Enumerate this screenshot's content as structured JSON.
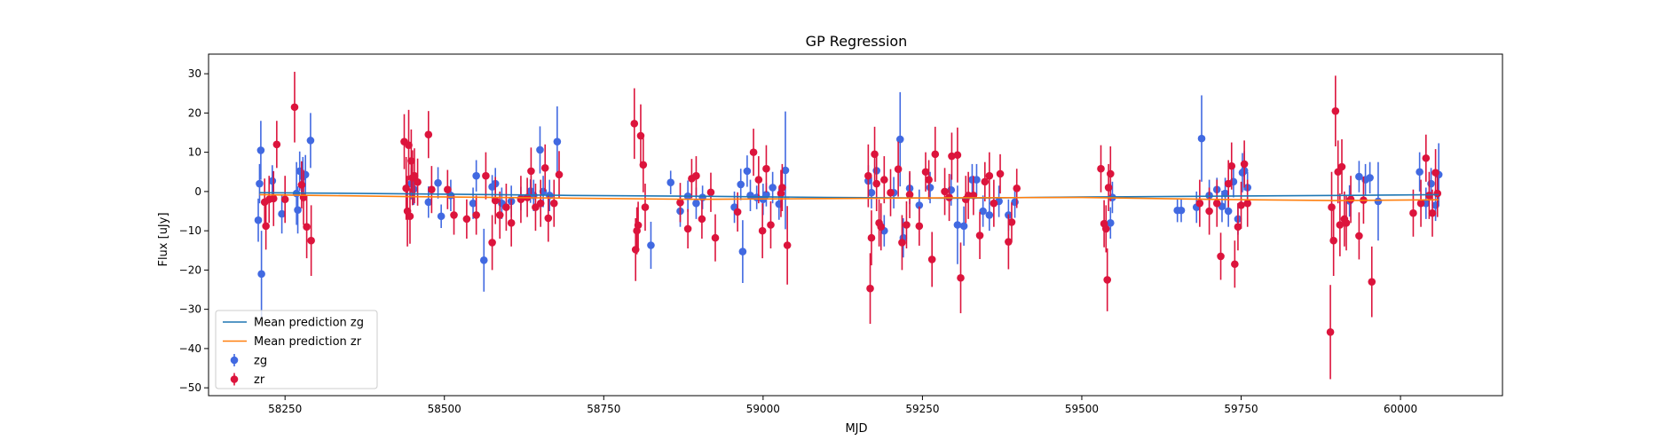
{
  "chart_data": {
    "type": "scatter",
    "title": "GP Regression",
    "xlabel": "MJD",
    "ylabel": "Flux [uJy]",
    "xlim": [
      58130,
      60160
    ],
    "ylim": [
      -52,
      35
    ],
    "x_ticks": [
      58250,
      58500,
      58750,
      59000,
      59250,
      59500,
      59750,
      60000
    ],
    "y_ticks": [
      -50,
      -40,
      -30,
      -20,
      -10,
      0,
      10,
      20,
      30
    ],
    "grid": false,
    "legend_position": "lower-left",
    "legend": [
      "Mean prediction zg",
      "Mean prediction zr",
      "zg",
      "zr"
    ],
    "colors": {
      "zg_line": "#1f77b4",
      "zr_line": "#ff7f0e",
      "zg_points": "#4169e1",
      "zr_points": "#dc143c"
    },
    "lines": [
      {
        "name": "Mean prediction zg",
        "x": [
          58210,
          58300,
          58450,
          58700,
          58900,
          59100,
          59300,
          59500,
          59700,
          59900,
          60060
        ],
        "y": [
          -0.3,
          -0.4,
          -0.6,
          -1.0,
          -1.2,
          -1.5,
          -1.7,
          -1.4,
          -1.2,
          -1.0,
          -0.8
        ]
      },
      {
        "name": "Mean prediction zr",
        "x": [
          58210,
          58300,
          58450,
          58700,
          58900,
          59100,
          59300,
          59500,
          59700,
          59900,
          60060
        ],
        "y": [
          -0.8,
          -1.0,
          -1.3,
          -1.7,
          -2.0,
          -1.8,
          -1.6,
          -1.5,
          -2.0,
          -2.3,
          -2.1
        ]
      }
    ],
    "series": [
      {
        "name": "zg",
        "points": [
          [
            58208,
            -7.3,
            5.5
          ],
          [
            58210,
            2.0,
            5
          ],
          [
            58212,
            10.5,
            7.5
          ],
          [
            58213,
            -21.0,
            11
          ],
          [
            58230,
            2.7,
            4
          ],
          [
            58245,
            -5.7,
            5
          ],
          [
            58268,
            -0.5,
            8
          ],
          [
            58270,
            -4.7,
            6
          ],
          [
            58273,
            5.2,
            5
          ],
          [
            58278,
            3.8,
            5
          ],
          [
            58282,
            4.3,
            5
          ],
          [
            58290,
            13.0,
            7
          ],
          [
            58448,
            2.0,
            4
          ],
          [
            58452,
            0.6,
            4
          ],
          [
            58475,
            -2.7,
            4
          ],
          [
            58490,
            2.2,
            4
          ],
          [
            58495,
            -6.3,
            3
          ],
          [
            58510,
            -1.0,
            4
          ],
          [
            58545,
            -3.0,
            4
          ],
          [
            58550,
            4.0,
            4
          ],
          [
            58562,
            -17.5,
            8
          ],
          [
            58575,
            1.2,
            3
          ],
          [
            58580,
            2.0,
            4
          ],
          [
            58590,
            -3.0,
            4
          ],
          [
            58605,
            -2.5,
            4
          ],
          [
            58620,
            -1.8,
            3
          ],
          [
            58635,
            0.1,
            3
          ],
          [
            58640,
            -1.0,
            4
          ],
          [
            58650,
            10.6,
            6
          ],
          [
            58655,
            0.0,
            4
          ],
          [
            58665,
            -1.0,
            4
          ],
          [
            58677,
            12.7,
            9
          ],
          [
            58824,
            -13.7,
            6
          ],
          [
            58855,
            2.3,
            3
          ],
          [
            58870,
            -5.0,
            4
          ],
          [
            58882,
            -1.2,
            4
          ],
          [
            58895,
            -3.0,
            4
          ],
          [
            58905,
            -1.5,
            3
          ],
          [
            58955,
            -4.0,
            4
          ],
          [
            58965,
            1.8,
            4
          ],
          [
            58968,
            -15.3,
            8
          ],
          [
            58975,
            5.2,
            4
          ],
          [
            58980,
            -1.0,
            4
          ],
          [
            58990,
            -1.5,
            3
          ],
          [
            59000,
            -2.0,
            4
          ],
          [
            59005,
            -0.8,
            3
          ],
          [
            59015,
            1.0,
            4
          ],
          [
            59025,
            -3.2,
            4
          ],
          [
            59035,
            5.4,
            15
          ],
          [
            59165,
            2.7,
            4
          ],
          [
            59170,
            -0.3,
            4
          ],
          [
            59178,
            5.3,
            4
          ],
          [
            59190,
            -10.0,
            4
          ],
          [
            59205,
            -0.3,
            4
          ],
          [
            59215,
            13.3,
            12
          ],
          [
            59220,
            -11.8,
            5
          ],
          [
            59230,
            0.8,
            4
          ],
          [
            59245,
            -3.5,
            4
          ],
          [
            59262,
            1.0,
            4
          ],
          [
            59295,
            0.4,
            4
          ],
          [
            59305,
            -8.5,
            10
          ],
          [
            59315,
            -8.8,
            5
          ],
          [
            59328,
            3.0,
            4
          ],
          [
            59335,
            3.0,
            4
          ],
          [
            59345,
            -5.0,
            4
          ],
          [
            59355,
            -6.0,
            4
          ],
          [
            59370,
            -2.5,
            4
          ],
          [
            59385,
            -6.0,
            4
          ],
          [
            59395,
            -2.7,
            4
          ],
          [
            59545,
            -8.0,
            4
          ],
          [
            59548,
            -1.5,
            4
          ],
          [
            59650,
            -4.8,
            3
          ],
          [
            59656,
            -4.8,
            3
          ],
          [
            59680,
            -4.0,
            4
          ],
          [
            59688,
            13.5,
            11
          ],
          [
            59700,
            -1.0,
            4
          ],
          [
            59712,
            0.5,
            3
          ],
          [
            59720,
            -3.8,
            4
          ],
          [
            59725,
            -0.5,
            4
          ],
          [
            59730,
            -5.0,
            4
          ],
          [
            59738,
            2.5,
            4
          ],
          [
            59745,
            -7.0,
            4
          ],
          [
            59752,
            4.8,
            5
          ],
          [
            59755,
            5.3,
            5
          ],
          [
            59760,
            1.0,
            4
          ],
          [
            59920,
            -2.4,
            4
          ],
          [
            59935,
            3.8,
            4
          ],
          [
            59945,
            3.0,
            4
          ],
          [
            59952,
            3.5,
            4
          ],
          [
            59965,
            -2.5,
            10
          ],
          [
            60030,
            5.0,
            5
          ],
          [
            60040,
            -3.0,
            4
          ],
          [
            60048,
            2.0,
            4
          ],
          [
            60055,
            -3.5,
            4
          ],
          [
            60060,
            4.3,
            8
          ]
        ]
      },
      {
        "name": "zr",
        "points": [
          [
            58218,
            -2.7,
            6
          ],
          [
            58220,
            -8.8,
            6
          ],
          [
            58225,
            -2.0,
            6
          ],
          [
            58232,
            -1.8,
            7
          ],
          [
            58237,
            12.0,
            6
          ],
          [
            58250,
            -2.0,
            6
          ],
          [
            58265,
            21.5,
            9
          ],
          [
            58276,
            1.7,
            6
          ],
          [
            58279,
            -1.5,
            7
          ],
          [
            58284,
            -9.0,
            8
          ],
          [
            58291,
            -12.5,
            9
          ],
          [
            58437,
            12.7,
            7
          ],
          [
            58440,
            0.8,
            8
          ],
          [
            58442,
            -5.0,
            9
          ],
          [
            58444,
            11.8,
            9
          ],
          [
            58446,
            -6.3,
            7
          ],
          [
            58448,
            7.8,
            8
          ],
          [
            58450,
            3.5,
            7
          ],
          [
            58453,
            4.0,
            7
          ],
          [
            58458,
            2.4,
            6
          ],
          [
            58475,
            14.5,
            6
          ],
          [
            58480,
            0.5,
            6
          ],
          [
            58505,
            0.5,
            5
          ],
          [
            58515,
            -6.0,
            5
          ],
          [
            58535,
            -7.0,
            5
          ],
          [
            58550,
            -6.0,
            5
          ],
          [
            58565,
            4.0,
            6
          ],
          [
            58575,
            -13.0,
            7
          ],
          [
            58580,
            -2.3,
            6
          ],
          [
            58587,
            -6.0,
            6
          ],
          [
            58597,
            -4.0,
            6
          ],
          [
            58605,
            -8.0,
            6
          ],
          [
            58620,
            -2.0,
            6
          ],
          [
            58630,
            -1.5,
            5
          ],
          [
            58636,
            5.2,
            6
          ],
          [
            58643,
            -4.0,
            6
          ],
          [
            58651,
            -3.0,
            6
          ],
          [
            58658,
            6.0,
            6
          ],
          [
            58663,
            -6.8,
            6
          ],
          [
            58672,
            -3.0,
            6
          ],
          [
            58680,
            4.3,
            6
          ],
          [
            58798,
            17.3,
            9
          ],
          [
            58800,
            -14.8,
            8
          ],
          [
            58802,
            -10.0,
            6
          ],
          [
            58804,
            -8.6,
            6
          ],
          [
            58808,
            14.2,
            8
          ],
          [
            58812,
            6.8,
            7
          ],
          [
            58815,
            -4.0,
            6
          ],
          [
            58870,
            -2.8,
            5
          ],
          [
            58882,
            -9.5,
            5
          ],
          [
            58888,
            3.3,
            5
          ],
          [
            58895,
            4.0,
            5
          ],
          [
            58904,
            -7.0,
            5
          ],
          [
            58918,
            -0.2,
            5
          ],
          [
            58925,
            -11.8,
            6
          ],
          [
            58960,
            -5.2,
            5
          ],
          [
            58985,
            10.0,
            6
          ],
          [
            58993,
            3.0,
            6
          ],
          [
            58999,
            -10.0,
            7
          ],
          [
            59005,
            5.8,
            6
          ],
          [
            59012,
            -8.5,
            6
          ],
          [
            59028,
            -0.5,
            6
          ],
          [
            59030,
            1.0,
            6
          ],
          [
            59038,
            -13.7,
            10
          ],
          [
            59165,
            4.0,
            8
          ],
          [
            59168,
            -24.7,
            9
          ],
          [
            59170,
            -11.8,
            7
          ],
          [
            59175,
            9.5,
            7
          ],
          [
            59178,
            2.0,
            7
          ],
          [
            59182,
            -8.0,
            6
          ],
          [
            59185,
            -9.0,
            6
          ],
          [
            59190,
            3.0,
            6
          ],
          [
            59200,
            -0.3,
            6
          ],
          [
            59212,
            5.7,
            7
          ],
          [
            59218,
            -13.0,
            7
          ],
          [
            59225,
            -8.5,
            6
          ],
          [
            59230,
            -0.8,
            6
          ],
          [
            59245,
            -8.8,
            5
          ],
          [
            59255,
            5.0,
            5
          ],
          [
            59260,
            3.0,
            5
          ],
          [
            59265,
            -17.3,
            7
          ],
          [
            59270,
            9.5,
            7
          ],
          [
            59285,
            0.0,
            6
          ],
          [
            59292,
            -1.5,
            6
          ],
          [
            59296,
            9.0,
            6
          ],
          [
            59305,
            9.3,
            7
          ],
          [
            59310,
            -22.0,
            9
          ],
          [
            59318,
            -2.0,
            6
          ],
          [
            59322,
            -1.0,
            6
          ],
          [
            59330,
            -1.0,
            5
          ],
          [
            59340,
            -11.2,
            6
          ],
          [
            59348,
            2.5,
            5
          ],
          [
            59355,
            4.0,
            6
          ],
          [
            59362,
            -3.0,
            6
          ],
          [
            59372,
            4.5,
            5
          ],
          [
            59385,
            -12.8,
            7
          ],
          [
            59390,
            -7.8,
            5
          ],
          [
            59398,
            0.8,
            5
          ],
          [
            59530,
            5.8,
            6
          ],
          [
            59535,
            -8.2,
            6
          ],
          [
            59538,
            -9.5,
            6
          ],
          [
            59540,
            -22.5,
            8
          ],
          [
            59542,
            1.0,
            6
          ],
          [
            59545,
            4.5,
            7
          ],
          [
            59685,
            -3.0,
            6
          ],
          [
            59700,
            -5.0,
            6
          ],
          [
            59712,
            -3.0,
            6
          ],
          [
            59718,
            -16.5,
            6
          ],
          [
            59730,
            2.0,
            6
          ],
          [
            59735,
            6.5,
            6
          ],
          [
            59740,
            -18.5,
            6
          ],
          [
            59745,
            -9.0,
            6
          ],
          [
            59750,
            -3.5,
            6
          ],
          [
            59755,
            7.0,
            6
          ],
          [
            59760,
            -3.0,
            6
          ],
          [
            59890,
            -35.8,
            12
          ],
          [
            59892,
            -4.0,
            9
          ],
          [
            59895,
            -12.5,
            9
          ],
          [
            59898,
            20.5,
            9
          ],
          [
            59902,
            5.0,
            8
          ],
          [
            59905,
            -8.5,
            8
          ],
          [
            59908,
            6.3,
            7
          ],
          [
            59912,
            -7.0,
            7
          ],
          [
            59915,
            -8.0,
            7
          ],
          [
            59922,
            -2.0,
            6
          ],
          [
            59935,
            -11.3,
            6
          ],
          [
            59942,
            -2.2,
            6
          ],
          [
            59955,
            -23.0,
            9
          ],
          [
            60020,
            -5.5,
            6
          ],
          [
            60032,
            -3.0,
            6
          ],
          [
            60040,
            8.5,
            6
          ],
          [
            60045,
            -1.0,
            6
          ],
          [
            60050,
            -5.5,
            6
          ],
          [
            60055,
            4.8,
            6
          ],
          [
            60058,
            -0.5,
            6
          ]
        ]
      }
    ]
  }
}
